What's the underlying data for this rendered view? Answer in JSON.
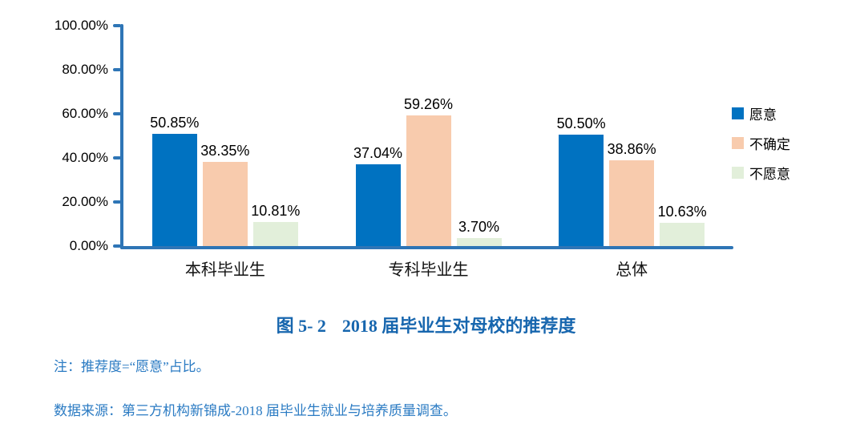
{
  "chart_data": {
    "type": "bar",
    "title": "图 5- 2　2018 届毕业生对母校的推荐度",
    "categories": [
      "本科毕业生",
      "专科毕业生",
      "总体"
    ],
    "series": [
      {
        "name": "愿意",
        "color": "#0072C1",
        "values": [
          50.85,
          37.04,
          50.5
        ],
        "labels": [
          "50.85%",
          "37.04%",
          "50.50%"
        ]
      },
      {
        "name": "不确定",
        "color": "#F8CBAD",
        "values": [
          38.35,
          59.26,
          38.86
        ],
        "labels": [
          "38.35%",
          "59.26%",
          "38.86%"
        ]
      },
      {
        "name": "不愿意",
        "color": "#E2EFDA",
        "values": [
          10.81,
          3.7,
          10.63
        ],
        "labels": [
          "10.81%",
          "3.70%",
          "10.63%"
        ]
      }
    ],
    "y_ticks": [
      "100.00%",
      "80.00%",
      "60.00%",
      "40.00%",
      "20.00%",
      "0.00%"
    ],
    "ylim": [
      0,
      100
    ],
    "grid": false,
    "legend_position": "right",
    "axis_color": "#2E75B6"
  },
  "caption": {
    "figure_label": "图 5- 2",
    "title_text": "2018 届毕业生对母校的推荐度",
    "color": "#1766AE"
  },
  "notes": {
    "note": "注：推荐度=“愿意”占比。",
    "source": "数据来源：第三方机构新锦成-2018 届毕业生就业与培养质量调查。",
    "color": "#2B7BC3"
  }
}
